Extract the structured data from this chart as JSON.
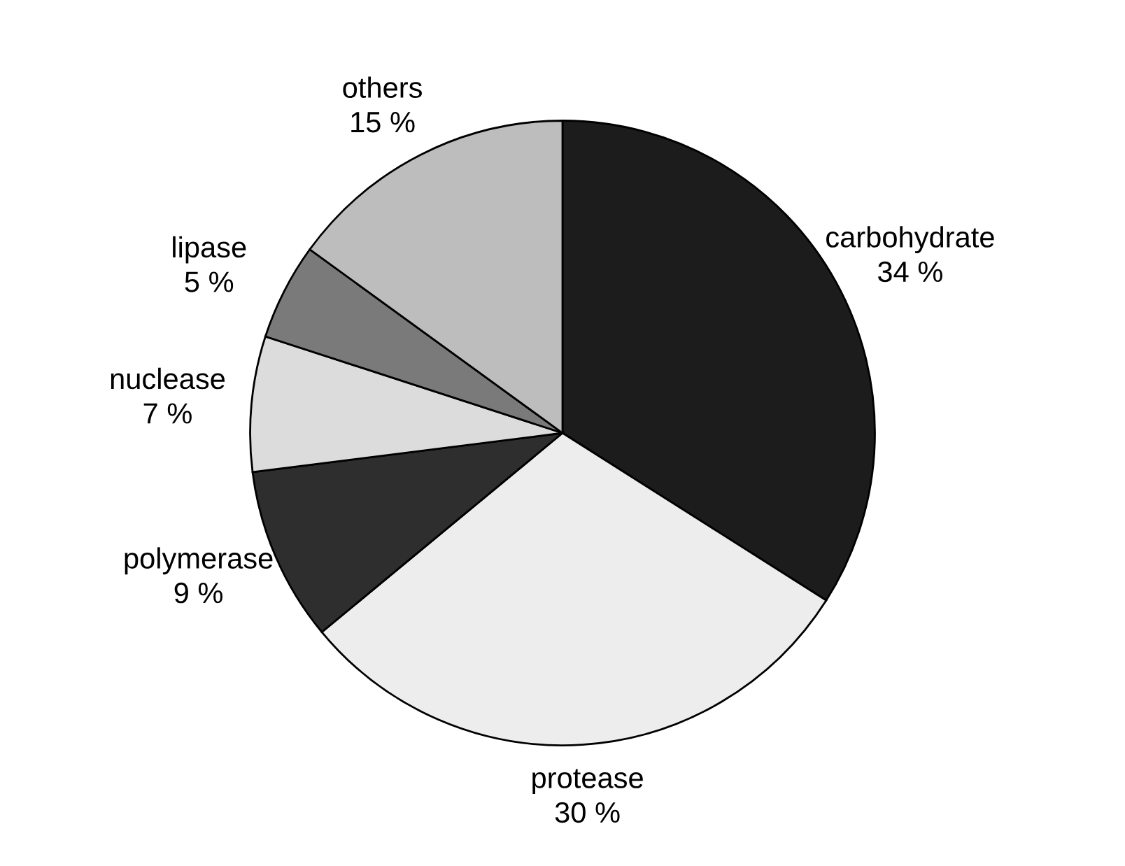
{
  "chart_data": {
    "type": "pie",
    "categories": [
      "carbohydrate",
      "protease",
      "polymerase",
      "nuclease",
      "lipase",
      "others"
    ],
    "values": [
      34,
      30,
      9,
      7,
      5,
      15
    ],
    "value_labels": [
      "34 %",
      "30 %",
      "9 %",
      "7 %",
      "5 %",
      "15 %"
    ],
    "colors": [
      "#1c1c1c",
      "#ededed",
      "#2e2e2e",
      "#dcdcdc",
      "#7a7a7a",
      "#bdbdbd"
    ],
    "legend": false
  }
}
